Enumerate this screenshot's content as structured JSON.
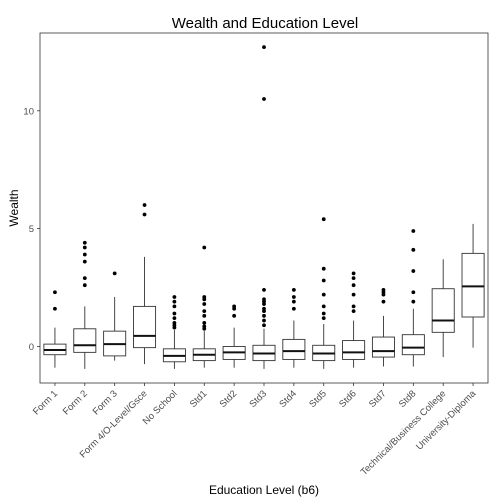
{
  "chart_data": {
    "type": "box",
    "title": "Wealth and Education Level",
    "xlabel": "Education Level (b6)",
    "ylabel": "Wealth",
    "ylim": [
      -1.55,
      13.3
    ],
    "yticks": [
      0,
      5,
      10
    ],
    "grid": false,
    "categories": [
      "Form 1",
      "Form 2",
      "Form 3",
      "Form 4/O-Level/Gsce",
      "No School",
      "Std1",
      "Std2",
      "Std3",
      "Std4",
      "Std5",
      "Std6",
      "Std7",
      "Std8",
      "Technical/Business College",
      "University-Diploma"
    ],
    "boxes": [
      {
        "whisker_low": -0.9,
        "q1": -0.35,
        "median": -0.15,
        "q3": 0.1,
        "whisker_high": 0.8,
        "outliers": [
          1.6,
          2.3
        ]
      },
      {
        "whisker_low": -0.95,
        "q1": -0.25,
        "median": 0.05,
        "q3": 0.75,
        "whisker_high": 1.7,
        "outliers": [
          2.6,
          2.9,
          3.6,
          3.9,
          4.2,
          4.4
        ]
      },
      {
        "whisker_low": -0.6,
        "q1": -0.4,
        "median": 0.1,
        "q3": 0.65,
        "whisker_high": 2.1,
        "outliers": [
          3.1
        ]
      },
      {
        "whisker_low": -0.75,
        "q1": -0.05,
        "median": 0.45,
        "q3": 1.7,
        "whisker_high": 3.8,
        "outliers": [
          5.6,
          6.0
        ]
      },
      {
        "whisker_low": -0.95,
        "q1": -0.65,
        "median": -0.4,
        "q3": -0.1,
        "whisker_high": 0.7,
        "outliers": [
          0.8,
          0.9,
          1.0,
          1.2,
          1.4,
          1.7,
          1.9,
          2.1
        ]
      },
      {
        "whisker_low": -0.9,
        "q1": -0.6,
        "median": -0.35,
        "q3": -0.1,
        "whisker_high": 0.65,
        "outliers": [
          0.75,
          0.85,
          1.0,
          1.3,
          1.5,
          1.8,
          2.0,
          2.1,
          4.2
        ]
      },
      {
        "whisker_low": -0.9,
        "q1": -0.55,
        "median": -0.25,
        "q3": 0.0,
        "whisker_high": 0.8,
        "outliers": [
          1.3,
          1.6,
          1.7
        ]
      },
      {
        "whisker_low": -0.95,
        "q1": -0.6,
        "median": -0.3,
        "q3": 0.05,
        "whisker_high": 0.75,
        "outliers": [
          0.9,
          1.1,
          1.3,
          1.5,
          1.6,
          1.8,
          1.9,
          2.0,
          2.4,
          10.5,
          12.7
        ]
      },
      {
        "whisker_low": -0.9,
        "q1": -0.55,
        "median": -0.2,
        "q3": 0.3,
        "whisker_high": 1.1,
        "outliers": [
          1.6,
          1.9,
          2.1,
          2.4
        ]
      },
      {
        "whisker_low": -0.95,
        "q1": -0.6,
        "median": -0.3,
        "q3": 0.05,
        "whisker_high": 0.95,
        "outliers": [
          1.2,
          1.4,
          1.7,
          2.2,
          2.8,
          3.3,
          5.4
        ]
      },
      {
        "whisker_low": -0.9,
        "q1": -0.55,
        "median": -0.25,
        "q3": 0.25,
        "whisker_high": 1.1,
        "outliers": [
          1.5,
          1.7,
          2.2,
          2.6,
          2.9,
          3.1
        ]
      },
      {
        "whisker_low": -0.85,
        "q1": -0.45,
        "median": -0.2,
        "q3": 0.4,
        "whisker_high": 1.3,
        "outliers": [
          1.9,
          2.2,
          2.3,
          2.4
        ]
      },
      {
        "whisker_low": -0.85,
        "q1": -0.35,
        "median": -0.05,
        "q3": 0.5,
        "whisker_high": 1.6,
        "outliers": [
          1.9,
          2.3,
          3.2,
          4.1,
          4.9
        ]
      },
      {
        "whisker_low": -0.45,
        "q1": 0.6,
        "median": 1.1,
        "q3": 2.45,
        "whisker_high": 3.7,
        "outliers": []
      },
      {
        "whisker_low": -0.05,
        "q1": 1.25,
        "median": 2.55,
        "q3": 3.95,
        "whisker_high": 5.2,
        "outliers": []
      }
    ]
  }
}
